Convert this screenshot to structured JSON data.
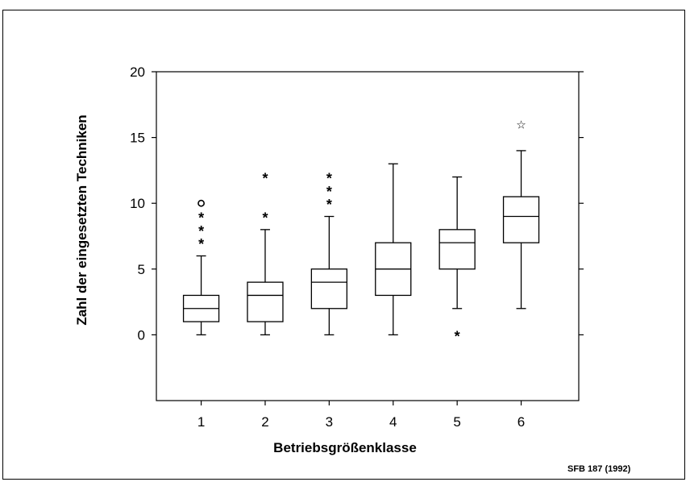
{
  "chart_data": {
    "type": "boxplot",
    "xlabel": "Betriebsgrößenklasse",
    "ylabel": "Zahl der eingesetzten Techniken",
    "credit": "SFB 187 (1992)",
    "ylim": [
      -5,
      20
    ],
    "xlim": [
      0.3,
      6.9
    ],
    "y_ticks": [
      "0",
      "5",
      "10",
      "15",
      "20"
    ],
    "categories": [
      "1",
      "2",
      "3",
      "4",
      "5",
      "6"
    ],
    "boxes": [
      {
        "category": "1",
        "whisker_low": 0,
        "q1": 1,
        "median": 2,
        "q3": 3,
        "whisker_high": 6,
        "outliers": [
          {
            "y": 7,
            "symbol": "*"
          },
          {
            "y": 8,
            "symbol": "*"
          },
          {
            "y": 9,
            "symbol": "*"
          },
          {
            "y": 10,
            "symbol": "o"
          }
        ]
      },
      {
        "category": "2",
        "whisker_low": 0,
        "q1": 1,
        "median": 3,
        "q3": 4,
        "whisker_high": 8,
        "outliers": [
          {
            "y": 9,
            "symbol": "*"
          },
          {
            "y": 12,
            "symbol": "*"
          }
        ]
      },
      {
        "category": "3",
        "whisker_low": 0,
        "q1": 2,
        "median": 4,
        "q3": 5,
        "whisker_high": 9,
        "outliers": [
          {
            "y": 10,
            "symbol": "*"
          },
          {
            "y": 11,
            "symbol": "*"
          },
          {
            "y": 12,
            "symbol": "*"
          }
        ]
      },
      {
        "category": "4",
        "whisker_low": 0,
        "q1": 3,
        "median": 5,
        "q3": 7,
        "whisker_high": 13,
        "outliers": []
      },
      {
        "category": "5",
        "whisker_low": 2,
        "q1": 5,
        "median": 7,
        "q3": 8,
        "whisker_high": 12,
        "outliers": [
          {
            "y": 0,
            "symbol": "*"
          }
        ]
      },
      {
        "category": "6",
        "whisker_low": 2,
        "q1": 7,
        "median": 9,
        "q3": 10.5,
        "whisker_high": 14,
        "outliers": [
          {
            "y": 16,
            "symbol": "☆"
          }
        ]
      }
    ]
  }
}
